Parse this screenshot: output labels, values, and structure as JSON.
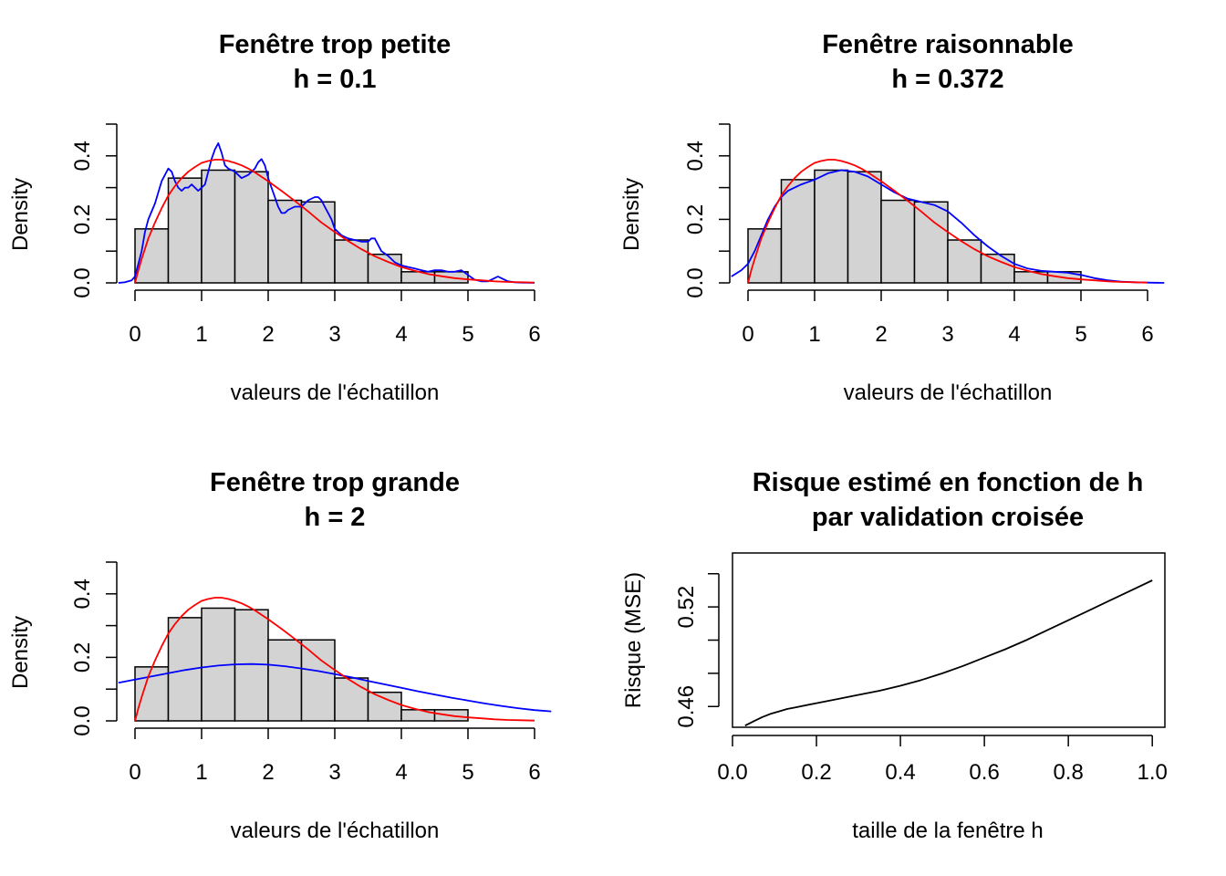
{
  "figure": {
    "panels": [
      {
        "id": "small",
        "title_line1": "Fenêtre trop petite",
        "title_line2": "h = 0.1",
        "xlabel": "valeurs de l'échatillon",
        "ylabel": "Density"
      },
      {
        "id": "reasonable",
        "title_line1": "Fenêtre raisonnable",
        "title_line2": "h = 0.372",
        "xlabel": "valeurs de l'échatillon",
        "ylabel": "Density"
      },
      {
        "id": "large",
        "title_line1": "Fenêtre trop grande",
        "title_line2": "h = 2",
        "xlabel": "valeurs de l'échatillon",
        "ylabel": "Density"
      },
      {
        "id": "risk",
        "title_line1": "Risque estimé en fonction de h",
        "title_line2": "par validation croisée",
        "xlabel": "taille de la fenêtre h",
        "ylabel": "Risque (MSE)"
      }
    ]
  },
  "chart_data": [
    {
      "type": "bar",
      "title": "Fenêtre trop petite\nh = 0.1",
      "xlabel": "valeurs de l'échatillon",
      "ylabel": "Density",
      "xlim": [
        -0.25,
        6.25
      ],
      "ylim": [
        0,
        0.5
      ],
      "x_ticks": [
        "0",
        "1",
        "2",
        "3",
        "4",
        "5",
        "6"
      ],
      "y_ticks": [
        "0.0",
        "0.2",
        "0.4"
      ],
      "bins": [
        [
          0,
          0.5
        ],
        [
          0.5,
          1
        ],
        [
          1,
          1.5
        ],
        [
          1.5,
          2
        ],
        [
          2,
          2.5
        ],
        [
          2.5,
          3
        ],
        [
          3,
          3.5
        ],
        [
          3.5,
          4
        ],
        [
          4,
          4.5
        ],
        [
          4.5,
          5
        ]
      ],
      "values": [
        0.17,
        0.33,
        0.355,
        0.35,
        0.26,
        0.255,
        0.135,
        0.09,
        0.035,
        0.035
      ],
      "bar_color": "#d3d3d3",
      "series": [
        {
          "type": "line",
          "color": "#0000ff",
          "x": [
            -0.25,
            -0.15,
            -0.05,
            0,
            0.05,
            0.1,
            0.15,
            0.2,
            0.3,
            0.4,
            0.5,
            0.55,
            0.6,
            0.65,
            0.7,
            0.75,
            0.8,
            0.85,
            0.9,
            0.95,
            1,
            1.05,
            1.1,
            1.15,
            1.2,
            1.25,
            1.3,
            1.35,
            1.4,
            1.5,
            1.6,
            1.7,
            1.8,
            1.85,
            1.9,
            1.95,
            2,
            2.05,
            2.1,
            2.15,
            2.2,
            2.25,
            2.3,
            2.4,
            2.5,
            2.6,
            2.7,
            2.75,
            2.8,
            2.85,
            2.9,
            2.95,
            3,
            3.1,
            3.2,
            3.3,
            3.4,
            3.5,
            3.55,
            3.6,
            3.65,
            3.7,
            3.8,
            3.9,
            4,
            4.1,
            4.2,
            4.3,
            4.4,
            4.5,
            4.6,
            4.7,
            4.8,
            4.9,
            5,
            5.1,
            5.2,
            5.3,
            5.4,
            5.45,
            5.5,
            5.6,
            5.7,
            5.8,
            6
          ],
          "y": [
            0,
            0.002,
            0.008,
            0.02,
            0.06,
            0.1,
            0.16,
            0.2,
            0.25,
            0.32,
            0.36,
            0.35,
            0.32,
            0.3,
            0.29,
            0.3,
            0.3,
            0.31,
            0.3,
            0.29,
            0.3,
            0.31,
            0.35,
            0.39,
            0.42,
            0.44,
            0.41,
            0.37,
            0.36,
            0.35,
            0.33,
            0.34,
            0.36,
            0.38,
            0.39,
            0.37,
            0.33,
            0.3,
            0.27,
            0.24,
            0.22,
            0.22,
            0.23,
            0.24,
            0.24,
            0.26,
            0.27,
            0.27,
            0.26,
            0.24,
            0.22,
            0.2,
            0.17,
            0.15,
            0.14,
            0.135,
            0.13,
            0.13,
            0.14,
            0.14,
            0.12,
            0.1,
            0.085,
            0.065,
            0.055,
            0.05,
            0.045,
            0.04,
            0.035,
            0.04,
            0.04,
            0.035,
            0.035,
            0.04,
            0.025,
            0.01,
            0.005,
            0.005,
            0.015,
            0.02,
            0.015,
            0.005,
            0.002,
            0.001,
            0
          ]
        },
        {
          "type": "line",
          "color": "#ff0000",
          "x": [
            0,
            0.05,
            0.1,
            0.2,
            0.3,
            0.4,
            0.5,
            0.6,
            0.7,
            0.8,
            0.9,
            1,
            1.1,
            1.2,
            1.3,
            1.4,
            1.5,
            1.6,
            1.7,
            1.8,
            1.9,
            2,
            2.2,
            2.4,
            2.6,
            2.8,
            3,
            3.2,
            3.4,
            3.6,
            3.8,
            4,
            4.2,
            4.4,
            4.6,
            4.8,
            5,
            5.2,
            5.4,
            5.6,
            5.8,
            6
          ],
          "y": [
            0,
            0.04,
            0.075,
            0.14,
            0.19,
            0.235,
            0.275,
            0.305,
            0.33,
            0.35,
            0.365,
            0.378,
            0.384,
            0.388,
            0.388,
            0.384,
            0.378,
            0.37,
            0.36,
            0.348,
            0.334,
            0.32,
            0.29,
            0.258,
            0.225,
            0.19,
            0.16,
            0.132,
            0.106,
            0.084,
            0.066,
            0.05,
            0.038,
            0.028,
            0.021,
            0.015,
            0.011,
            0.008,
            0.005,
            0.003,
            0.002,
            0.001
          ]
        }
      ]
    },
    {
      "type": "bar",
      "title": "Fenêtre raisonnable\nh = 0.372",
      "xlabel": "valeurs de l'échatillon",
      "ylabel": "Density",
      "xlim": [
        -0.25,
        6.25
      ],
      "ylim": [
        0,
        0.5
      ],
      "x_ticks": [
        "0",
        "1",
        "2",
        "3",
        "4",
        "5",
        "6"
      ],
      "y_ticks": [
        "0.0",
        "0.2",
        "0.4"
      ],
      "bins": [
        [
          0,
          0.5
        ],
        [
          0.5,
          1
        ],
        [
          1,
          1.5
        ],
        [
          1.5,
          2
        ],
        [
          2,
          2.5
        ],
        [
          2.5,
          3
        ],
        [
          3,
          3.5
        ],
        [
          3.5,
          4
        ],
        [
          4,
          4.5
        ],
        [
          4.5,
          5
        ]
      ],
      "values": [
        0.17,
        0.325,
        0.355,
        0.35,
        0.26,
        0.255,
        0.135,
        0.09,
        0.035,
        0.035
      ],
      "bar_color": "#d3d3d3",
      "series": [
        {
          "type": "line",
          "color": "#0000ff",
          "x": [
            -0.25,
            -0.1,
            0,
            0.1,
            0.2,
            0.3,
            0.4,
            0.5,
            0.6,
            0.8,
            1,
            1.2,
            1.4,
            1.6,
            1.8,
            2,
            2.2,
            2.4,
            2.6,
            2.8,
            3,
            3.2,
            3.4,
            3.6,
            3.8,
            4,
            4.2,
            4.4,
            4.6,
            4.8,
            5,
            5.2,
            5.4,
            5.6,
            5.8,
            6,
            6.25
          ],
          "y": [
            0.02,
            0.04,
            0.06,
            0.1,
            0.15,
            0.2,
            0.24,
            0.27,
            0.29,
            0.31,
            0.325,
            0.345,
            0.355,
            0.35,
            0.335,
            0.31,
            0.285,
            0.265,
            0.255,
            0.245,
            0.225,
            0.19,
            0.15,
            0.115,
            0.085,
            0.06,
            0.045,
            0.038,
            0.035,
            0.032,
            0.025,
            0.015,
            0.008,
            0.004,
            0.002,
            0.001,
            0
          ]
        },
        {
          "type": "line",
          "color": "#ff0000",
          "x": [
            0,
            0.05,
            0.1,
            0.2,
            0.3,
            0.4,
            0.5,
            0.6,
            0.7,
            0.8,
            0.9,
            1,
            1.1,
            1.2,
            1.3,
            1.4,
            1.5,
            1.6,
            1.7,
            1.8,
            1.9,
            2,
            2.2,
            2.4,
            2.6,
            2.8,
            3,
            3.2,
            3.4,
            3.6,
            3.8,
            4,
            4.2,
            4.4,
            4.6,
            4.8,
            5,
            5.2,
            5.4,
            5.6,
            5.8,
            6
          ],
          "y": [
            0,
            0.04,
            0.075,
            0.14,
            0.19,
            0.235,
            0.275,
            0.305,
            0.33,
            0.35,
            0.365,
            0.378,
            0.384,
            0.388,
            0.388,
            0.384,
            0.378,
            0.37,
            0.36,
            0.348,
            0.334,
            0.32,
            0.29,
            0.258,
            0.225,
            0.19,
            0.16,
            0.132,
            0.106,
            0.084,
            0.066,
            0.05,
            0.038,
            0.028,
            0.021,
            0.015,
            0.011,
            0.008,
            0.005,
            0.003,
            0.002,
            0.001
          ]
        }
      ]
    },
    {
      "type": "bar",
      "title": "Fenêtre trop grande\nh = 2",
      "xlabel": "valeurs de l'échatillon",
      "ylabel": "Density",
      "xlim": [
        -0.25,
        6.25
      ],
      "ylim": [
        0,
        0.5
      ],
      "x_ticks": [
        "0",
        "1",
        "2",
        "3",
        "4",
        "5",
        "6"
      ],
      "y_ticks": [
        "0.0",
        "0.2",
        "0.4"
      ],
      "bins": [
        [
          0,
          0.5
        ],
        [
          0.5,
          1
        ],
        [
          1,
          1.5
        ],
        [
          1.5,
          2
        ],
        [
          2,
          2.5
        ],
        [
          2.5,
          3
        ],
        [
          3,
          3.5
        ],
        [
          3.5,
          4
        ],
        [
          4,
          4.5
        ],
        [
          4.5,
          5
        ]
      ],
      "values": [
        0.17,
        0.325,
        0.355,
        0.35,
        0.255,
        0.255,
        0.135,
        0.09,
        0.035,
        0.035
      ],
      "bar_color": "#d3d3d3",
      "series": [
        {
          "type": "line",
          "color": "#0000ff",
          "x": [
            -0.25,
            0,
            0.25,
            0.5,
            0.75,
            1,
            1.25,
            1.5,
            1.75,
            2,
            2.25,
            2.5,
            2.75,
            3,
            3.25,
            3.5,
            3.75,
            4,
            4.25,
            4.5,
            4.75,
            5,
            5.25,
            5.5,
            5.75,
            6,
            6.25
          ],
          "y": [
            0.12,
            0.13,
            0.14,
            0.15,
            0.16,
            0.168,
            0.174,
            0.178,
            0.179,
            0.177,
            0.172,
            0.165,
            0.157,
            0.147,
            0.137,
            0.126,
            0.115,
            0.104,
            0.093,
            0.083,
            0.073,
            0.064,
            0.055,
            0.047,
            0.04,
            0.034,
            0.03
          ]
        },
        {
          "type": "line",
          "color": "#ff0000",
          "x": [
            0,
            0.05,
            0.1,
            0.2,
            0.3,
            0.4,
            0.5,
            0.6,
            0.7,
            0.8,
            0.9,
            1,
            1.1,
            1.2,
            1.3,
            1.4,
            1.5,
            1.6,
            1.7,
            1.8,
            1.9,
            2,
            2.2,
            2.4,
            2.6,
            2.8,
            3,
            3.2,
            3.4,
            3.6,
            3.8,
            4,
            4.2,
            4.4,
            4.6,
            4.8,
            5,
            5.2,
            5.4,
            5.6,
            5.8,
            6
          ],
          "y": [
            0,
            0.04,
            0.075,
            0.14,
            0.19,
            0.235,
            0.275,
            0.305,
            0.33,
            0.35,
            0.365,
            0.378,
            0.384,
            0.388,
            0.388,
            0.384,
            0.378,
            0.37,
            0.36,
            0.348,
            0.334,
            0.32,
            0.29,
            0.258,
            0.225,
            0.19,
            0.16,
            0.132,
            0.106,
            0.084,
            0.066,
            0.05,
            0.038,
            0.028,
            0.021,
            0.015,
            0.011,
            0.008,
            0.005,
            0.003,
            0.002,
            0.001
          ]
        }
      ]
    },
    {
      "type": "line",
      "title": "Risque estimé en fonction de h\npar validation croisée",
      "xlabel": "taille de la fenêtre h",
      "ylabel": "Risque (MSE)",
      "xlim": [
        0.0,
        1.03
      ],
      "ylim": [
        0.4475,
        0.5525
      ],
      "x_ticks": [
        0.0,
        0.2,
        0.4,
        0.6,
        0.8,
        1.0
      ],
      "x_tick_labels": [
        "0.0",
        "0.2",
        "0.4",
        "0.6",
        "0.8",
        "1.0"
      ],
      "y_ticks": [
        0.46,
        0.48,
        0.5,
        0.52,
        0.54
      ],
      "y_tick_labels": [
        "0.46",
        "0.52"
      ],
      "series": [
        {
          "color": "#000000",
          "x": [
            0.03,
            0.05,
            0.07,
            0.09,
            0.11,
            0.13,
            0.15,
            0.2,
            0.25,
            0.3,
            0.35,
            0.4,
            0.45,
            0.5,
            0.55,
            0.6,
            0.65,
            0.7,
            0.75,
            0.8,
            0.85,
            0.9,
            0.95,
            1.0
          ],
          "y": [
            0.4485,
            0.451,
            0.4535,
            0.4555,
            0.457,
            0.4585,
            0.4595,
            0.462,
            0.4645,
            0.467,
            0.4695,
            0.4725,
            0.476,
            0.48,
            0.4845,
            0.4895,
            0.4945,
            0.5,
            0.506,
            0.512,
            0.518,
            0.524,
            0.53,
            0.536
          ]
        }
      ]
    }
  ]
}
